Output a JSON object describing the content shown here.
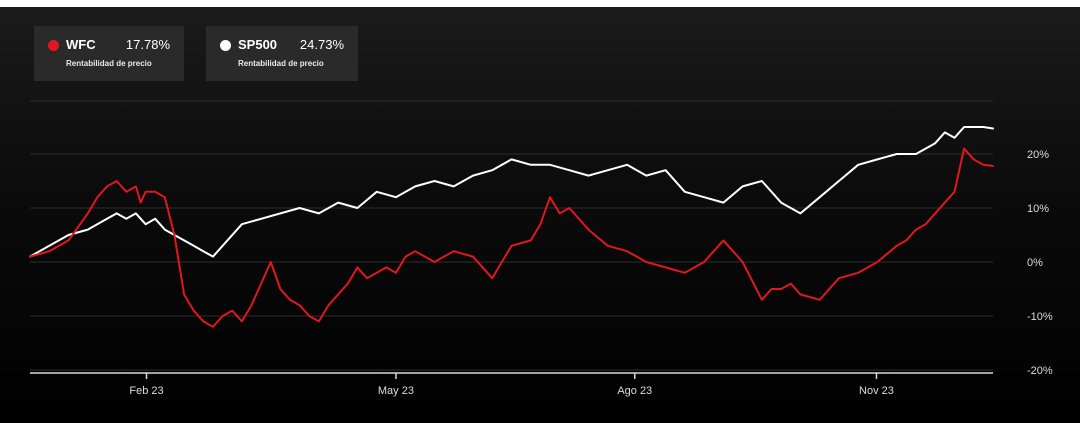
{
  "legend": [
    {
      "name": "WFC",
      "value": "17.78%",
      "subtitle": "Rentabilidad de precio",
      "color": "#e0171f"
    },
    {
      "name": "SP500",
      "value": "24.73%",
      "subtitle": "Rentabilidad de precio",
      "color": "#ffffff"
    }
  ],
  "chart_data": {
    "type": "line",
    "title": "",
    "xlabel": "",
    "ylabel": "",
    "x_tick_labels": [
      "Feb 23",
      "May 23",
      "Ago 23",
      "Nov 23"
    ],
    "x_tick_positions": [
      0.121,
      0.38,
      0.628,
      0.879
    ],
    "y_ticks": [
      20,
      10,
      0,
      -10,
      -20
    ],
    "y_tick_labels": [
      "20%",
      "10%",
      "0%",
      "-10%",
      "-20%"
    ],
    "ylim": [
      -20,
      30
    ],
    "grid": true,
    "legend_position": "top-left",
    "series": [
      {
        "name": "WFC",
        "color": "#e0171f",
        "x": [
          0.0,
          0.02,
          0.04,
          0.06,
          0.07,
          0.08,
          0.09,
          0.1,
          0.11,
          0.115,
          0.12,
          0.13,
          0.14,
          0.15,
          0.16,
          0.17,
          0.18,
          0.19,
          0.2,
          0.21,
          0.22,
          0.23,
          0.24,
          0.25,
          0.26,
          0.27,
          0.28,
          0.29,
          0.3,
          0.31,
          0.32,
          0.33,
          0.34,
          0.35,
          0.36,
          0.37,
          0.38,
          0.39,
          0.4,
          0.42,
          0.44,
          0.46,
          0.48,
          0.5,
          0.52,
          0.53,
          0.54,
          0.55,
          0.56,
          0.57,
          0.58,
          0.6,
          0.62,
          0.64,
          0.66,
          0.68,
          0.7,
          0.71,
          0.72,
          0.74,
          0.76,
          0.77,
          0.78,
          0.79,
          0.8,
          0.82,
          0.84,
          0.86,
          0.88,
          0.9,
          0.91,
          0.92,
          0.93,
          0.94,
          0.95,
          0.96,
          0.97,
          0.98,
          0.99,
          1.0
        ],
        "values": [
          1,
          2,
          4,
          9,
          12,
          14,
          15,
          13,
          14,
          11,
          13,
          13,
          12,
          5,
          -6,
          -9,
          -11,
          -12,
          -10,
          -9,
          -11,
          -8,
          -4,
          0,
          -5,
          -7,
          -8,
          -10,
          -11,
          -8,
          -6,
          -4,
          -1,
          -3,
          -2,
          -1,
          -2,
          1,
          2,
          0,
          2,
          1,
          -3,
          3,
          4,
          7,
          12,
          9,
          10,
          8,
          6,
          3,
          2,
          0,
          -1,
          -2,
          0,
          2,
          4,
          0,
          -7,
          -5,
          -5,
          -4,
          -6,
          -7,
          -3,
          -2,
          0,
          3,
          4,
          6,
          7,
          9,
          11,
          13,
          21,
          19,
          18,
          17.78
        ]
      },
      {
        "name": "SP500",
        "color": "#ffffff",
        "x": [
          0.0,
          0.02,
          0.04,
          0.06,
          0.08,
          0.09,
          0.1,
          0.11,
          0.12,
          0.13,
          0.14,
          0.15,
          0.16,
          0.17,
          0.18,
          0.19,
          0.2,
          0.22,
          0.24,
          0.26,
          0.28,
          0.3,
          0.32,
          0.34,
          0.36,
          0.38,
          0.4,
          0.42,
          0.44,
          0.46,
          0.48,
          0.5,
          0.52,
          0.54,
          0.56,
          0.58,
          0.6,
          0.62,
          0.64,
          0.66,
          0.68,
          0.7,
          0.72,
          0.74,
          0.76,
          0.78,
          0.8,
          0.82,
          0.84,
          0.86,
          0.88,
          0.9,
          0.92,
          0.94,
          0.95,
          0.96,
          0.97,
          0.98,
          0.99,
          1.0
        ],
        "values": [
          1,
          3,
          5,
          6,
          8,
          9,
          8,
          9,
          7,
          8,
          6,
          5,
          4,
          3,
          2,
          1,
          3,
          7,
          8,
          9,
          10,
          9,
          11,
          10,
          13,
          12,
          14,
          15,
          14,
          16,
          17,
          19,
          18,
          18,
          17,
          16,
          17,
          18,
          16,
          17,
          13,
          12,
          11,
          14,
          15,
          11,
          9,
          12,
          15,
          18,
          19,
          20,
          20,
          22,
          24,
          23,
          25,
          25,
          25,
          24.73
        ]
      }
    ]
  }
}
